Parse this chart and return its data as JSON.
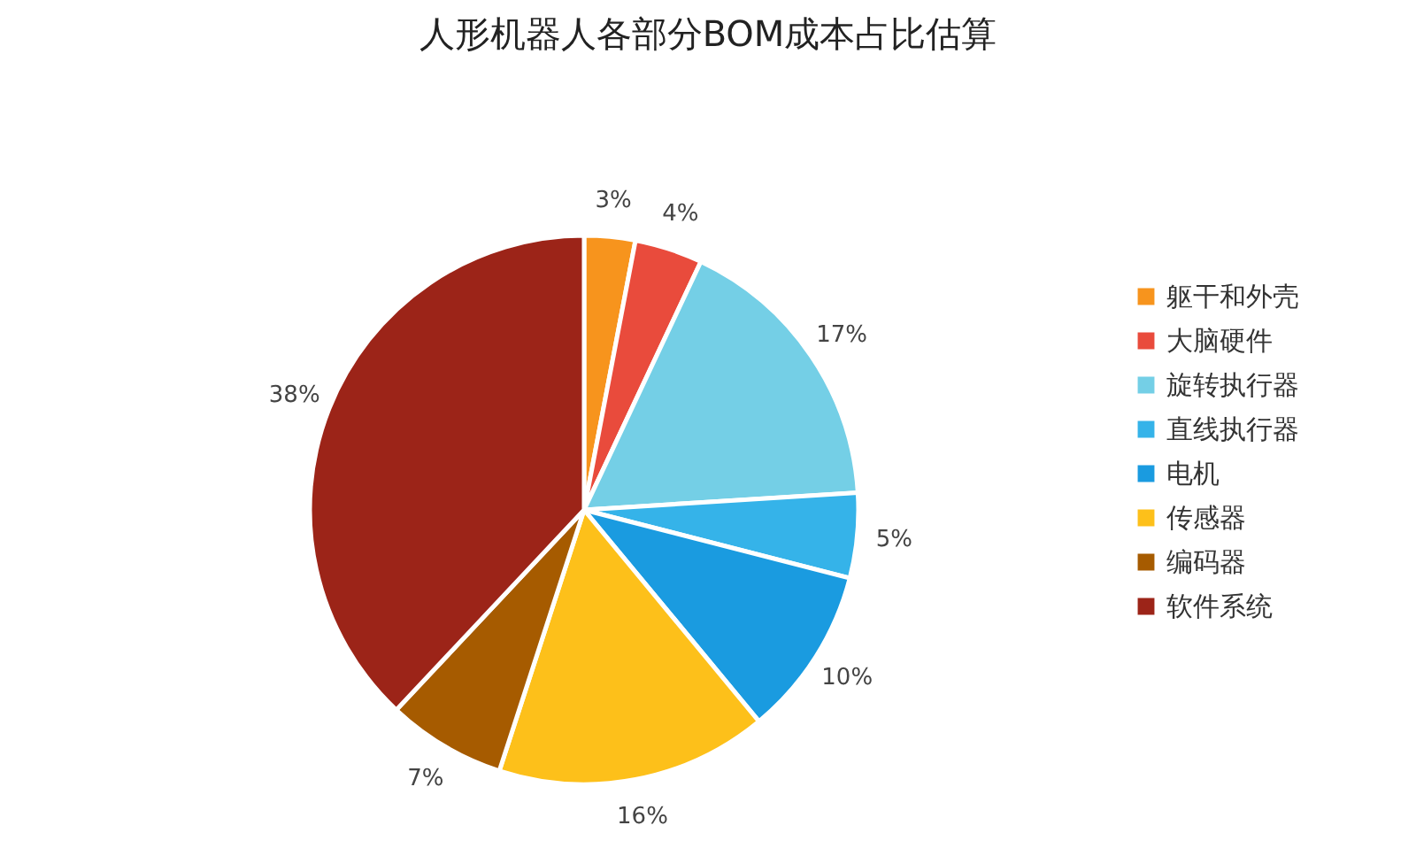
{
  "chart_data": {
    "type": "pie",
    "title": "人形机器人各部分BOM成本占比估算",
    "categories": [
      "躯干和外壳",
      "大脑硬件",
      "旋转执行器",
      "直线执行器",
      "电机",
      "传感器",
      "编码器",
      "软件系统"
    ],
    "values": [
      3,
      4,
      17,
      5,
      10,
      16,
      7,
      38
    ],
    "colors": [
      "#f7941d",
      "#e94b3c",
      "#74cfe6",
      "#35b3e9",
      "#1a9be0",
      "#fdc01a",
      "#a65b00",
      "#9c2418"
    ],
    "value_labels": [
      "3%",
      "4%",
      "17%",
      "5%",
      "10%",
      "16%",
      "7%",
      "38%"
    ],
    "legend": "right"
  }
}
